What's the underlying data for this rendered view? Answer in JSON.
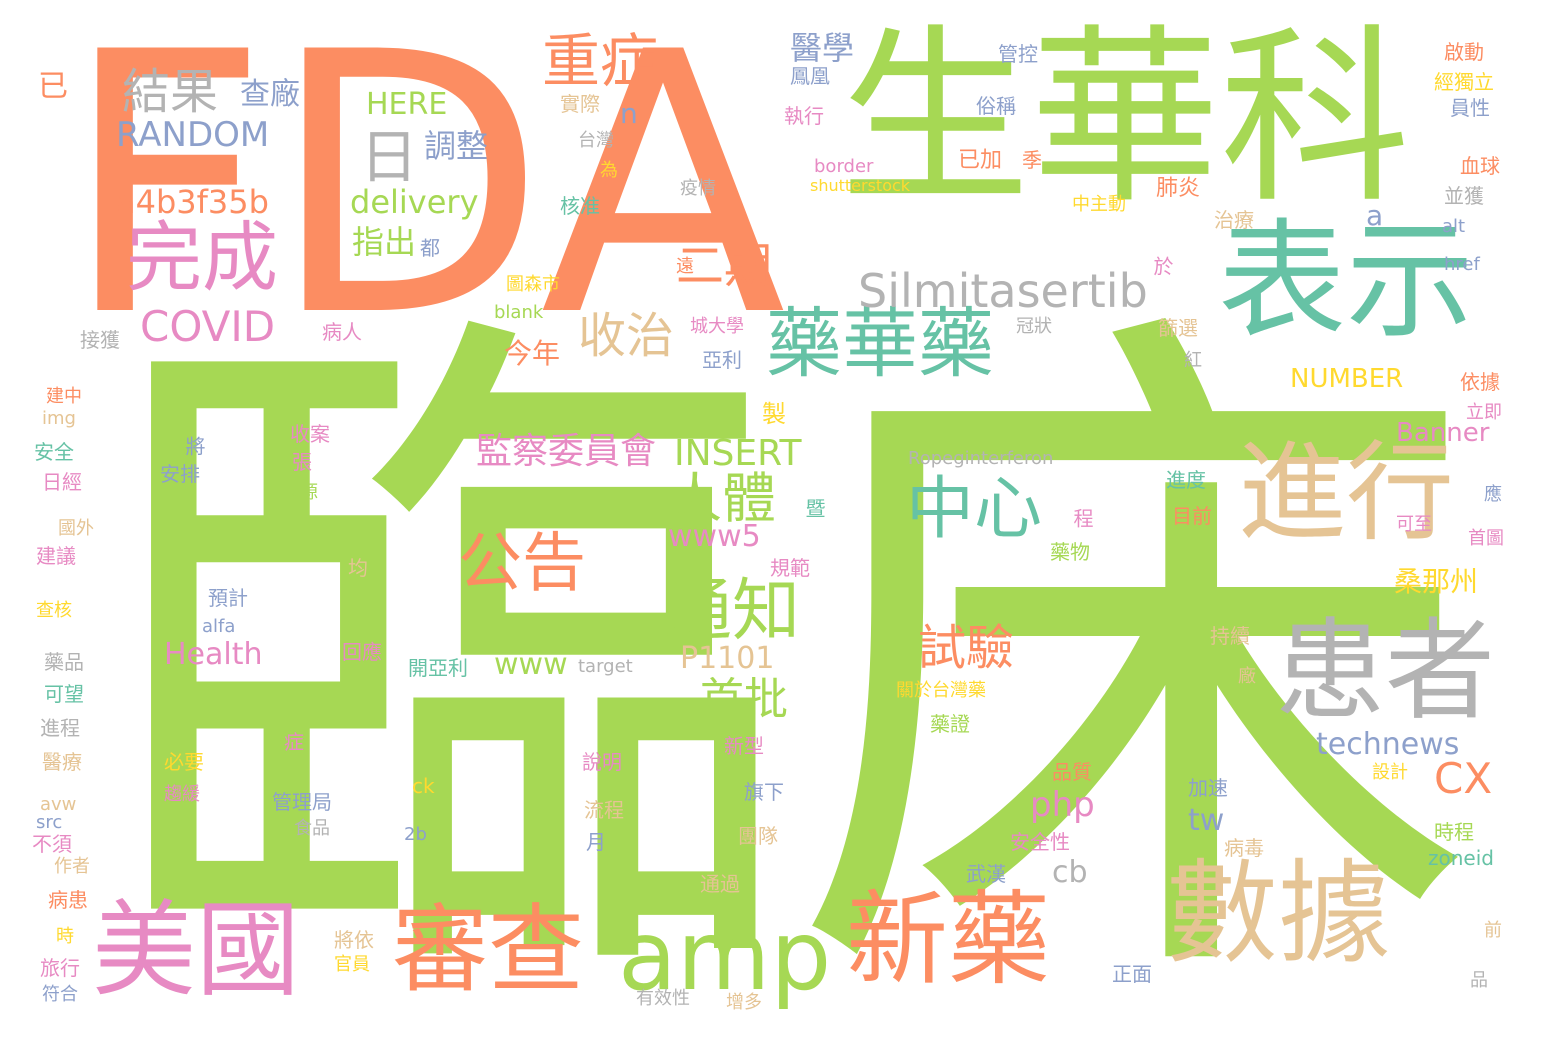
{
  "palette": {
    "green": "#a6d854",
    "orange": "#fc8d62",
    "teal": "#66c2a5",
    "tan": "#e5c494",
    "gray": "#b3b3b3",
    "pink": "#e78ac3",
    "blue": "#8da0cb",
    "yellow": "#ffd92f"
  },
  "words": [
    {
      "text": "臨床",
      "color": "green"
    },
    {
      "text": "FDA",
      "color": "orange"
    },
    {
      "text": "生華科",
      "color": "green"
    },
    {
      "text": "表示",
      "color": "teal"
    },
    {
      "text": "進行",
      "color": "tan"
    },
    {
      "text": "患者",
      "color": "gray"
    },
    {
      "text": "數據",
      "color": "tan"
    },
    {
      "text": "美國",
      "color": "pink"
    },
    {
      "text": "審查",
      "color": "orange"
    },
    {
      "text": "amp",
      "color": "green"
    },
    {
      "text": "新藥",
      "color": "orange"
    },
    {
      "text": "完成",
      "color": "pink"
    },
    {
      "text": "結果",
      "color": "gray"
    },
    {
      "text": "日",
      "color": "gray"
    },
    {
      "text": "重症",
      "color": "orange"
    },
    {
      "text": "醫學",
      "color": "blue"
    },
    {
      "text": "藥華藥",
      "color": "teal"
    },
    {
      "text": "Silmitasertib",
      "color": "gray"
    },
    {
      "text": "中心",
      "color": "teal"
    },
    {
      "text": "通知",
      "color": "green"
    },
    {
      "text": "公告",
      "color": "orange"
    },
    {
      "text": "人體",
      "color": "green"
    },
    {
      "text": "收治",
      "color": "tan"
    },
    {
      "text": "二期",
      "color": "orange"
    },
    {
      "text": "COVID",
      "color": "pink"
    },
    {
      "text": "RANDOM",
      "color": "blue"
    },
    {
      "text": "a4b3f35b",
      "color": "orange"
    },
    {
      "text": "delivery",
      "color": "green"
    },
    {
      "text": "指出",
      "color": "green"
    },
    {
      "text": "調整",
      "color": "blue"
    },
    {
      "text": "查廠",
      "color": "blue"
    },
    {
      "text": "HERE",
      "color": "green"
    },
    {
      "text": "監察委員會",
      "color": "pink"
    },
    {
      "text": "INSERT",
      "color": "green"
    },
    {
      "text": "試驗",
      "color": "orange"
    },
    {
      "text": "首批",
      "color": "green"
    },
    {
      "text": "www5",
      "color": "pink"
    },
    {
      "text": "www",
      "color": "green"
    },
    {
      "text": "P1101",
      "color": "tan"
    },
    {
      "text": "technews",
      "color": "blue"
    },
    {
      "text": "php",
      "color": "pink"
    },
    {
      "text": "CX",
      "color": "orange"
    },
    {
      "text": "tw",
      "color": "blue"
    },
    {
      "text": "cb",
      "color": "gray"
    },
    {
      "text": "Health",
      "color": "pink"
    },
    {
      "text": "Banner",
      "color": "pink"
    },
    {
      "text": "NUMBER",
      "color": "yellow"
    },
    {
      "text": "桑那州",
      "color": "yellow"
    },
    {
      "text": "今年",
      "color": "orange"
    },
    {
      "text": "n",
      "color": "blue"
    },
    {
      "text": "a",
      "color": "blue"
    },
    {
      "text": "Ropeginterferon",
      "color": "gray"
    },
    {
      "text": "已",
      "color": "orange"
    },
    {
      "text": "管控",
      "color": "blue"
    },
    {
      "text": "俗稱",
      "color": "blue"
    },
    {
      "text": "鳳凰",
      "color": "blue"
    },
    {
      "text": "實際",
      "color": "tan"
    },
    {
      "text": "執行",
      "color": "pink"
    },
    {
      "text": "台灣",
      "color": "gray"
    },
    {
      "text": "為",
      "color": "yellow"
    },
    {
      "text": "疫情",
      "color": "gray"
    },
    {
      "text": "border",
      "color": "pink"
    },
    {
      "text": "shutterstock",
      "color": "yellow"
    },
    {
      "text": "已加",
      "color": "orange"
    },
    {
      "text": "季",
      "color": "orange"
    },
    {
      "text": "啟動",
      "color": "orange"
    },
    {
      "text": "經獨立",
      "color": "yellow"
    },
    {
      "text": "員性",
      "color": "blue"
    },
    {
      "text": "血球",
      "color": "orange"
    },
    {
      "text": "並獲",
      "color": "gray"
    },
    {
      "text": "肺炎",
      "color": "orange"
    },
    {
      "text": "中主動",
      "color": "yellow"
    },
    {
      "text": "治療",
      "color": "tan"
    },
    {
      "text": "alt",
      "color": "blue"
    },
    {
      "text": "href",
      "color": "blue"
    },
    {
      "text": "於",
      "color": "pink"
    },
    {
      "text": "核准",
      "color": "teal"
    },
    {
      "text": "都",
      "color": "blue"
    },
    {
      "text": "圖森市",
      "color": "yellow"
    },
    {
      "text": "遠",
      "color": "orange"
    },
    {
      "text": "blank",
      "color": "green"
    },
    {
      "text": "城大學",
      "color": "pink"
    },
    {
      "text": "冠狀",
      "color": "gray"
    },
    {
      "text": "篩選",
      "color": "tan"
    },
    {
      "text": "紅",
      "color": "gray"
    },
    {
      "text": "亞利",
      "color": "blue"
    },
    {
      "text": "依據",
      "color": "orange"
    },
    {
      "text": "立即",
      "color": "pink"
    },
    {
      "text": "接獲",
      "color": "gray"
    },
    {
      "text": "病人",
      "color": "pink"
    },
    {
      "text": "建中",
      "color": "orange"
    },
    {
      "text": "img",
      "color": "tan"
    },
    {
      "text": "安全",
      "color": "teal"
    },
    {
      "text": "日經",
      "color": "pink"
    },
    {
      "text": "國外",
      "color": "tan"
    },
    {
      "text": "建議",
      "color": "pink"
    },
    {
      "text": "查核",
      "color": "yellow"
    },
    {
      "text": "藥品",
      "color": "gray"
    },
    {
      "text": "可望",
      "color": "teal"
    },
    {
      "text": "進程",
      "color": "gray"
    },
    {
      "text": "醫療",
      "color": "tan"
    },
    {
      "text": "avw",
      "color": "tan"
    },
    {
      "text": "src",
      "color": "blue"
    },
    {
      "text": "不須",
      "color": "pink"
    },
    {
      "text": "作者",
      "color": "tan"
    },
    {
      "text": "病患",
      "color": "orange"
    },
    {
      "text": "時",
      "color": "yellow"
    },
    {
      "text": "旅行",
      "color": "pink"
    },
    {
      "text": "符合",
      "color": "blue"
    },
    {
      "text": "將",
      "color": "blue"
    },
    {
      "text": "安排",
      "color": "blue"
    },
    {
      "text": "收案",
      "color": "pink"
    },
    {
      "text": "張",
      "color": "pink"
    },
    {
      "text": "來源",
      "color": "green"
    },
    {
      "text": "均",
      "color": "tan"
    },
    {
      "text": "預計",
      "color": "blue"
    },
    {
      "text": "alfa",
      "color": "blue"
    },
    {
      "text": "回應",
      "color": "pink"
    },
    {
      "text": "開亞利",
      "color": "teal"
    },
    {
      "text": "target",
      "color": "gray"
    },
    {
      "text": "規範",
      "color": "pink"
    },
    {
      "text": "製",
      "color": "yellow"
    },
    {
      "text": "暨",
      "color": "teal"
    },
    {
      "text": "必要",
      "color": "yellow"
    },
    {
      "text": "趨緩",
      "color": "pink"
    },
    {
      "text": "症",
      "color": "pink"
    },
    {
      "text": "管理局",
      "color": "blue"
    },
    {
      "text": "食品",
      "color": "gray"
    },
    {
      "text": "將依",
      "color": "tan"
    },
    {
      "text": "官員",
      "color": "yellow"
    },
    {
      "text": "有效性",
      "color": "gray"
    },
    {
      "text": "增多",
      "color": "tan"
    },
    {
      "text": "說明",
      "color": "pink"
    },
    {
      "text": "流程",
      "color": "tan"
    },
    {
      "text": "月",
      "color": "blue"
    },
    {
      "text": "ck",
      "color": "yellow"
    },
    {
      "text": "2b",
      "color": "blue"
    },
    {
      "text": "新型",
      "color": "pink"
    },
    {
      "text": "旗下",
      "color": "blue"
    },
    {
      "text": "團隊",
      "color": "tan"
    },
    {
      "text": "通過",
      "color": "tan"
    },
    {
      "text": "關於台灣藥",
      "color": "yellow"
    },
    {
      "text": "藥證",
      "color": "green"
    },
    {
      "text": "品質",
      "color": "orange"
    },
    {
      "text": "安全性",
      "color": "pink"
    },
    {
      "text": "武漢",
      "color": "blue"
    },
    {
      "text": "正面",
      "color": "blue"
    },
    {
      "text": "進度",
      "color": "teal"
    },
    {
      "text": "目前",
      "color": "orange"
    },
    {
      "text": "程",
      "color": "pink"
    },
    {
      "text": "藥物",
      "color": "green"
    },
    {
      "text": "持續",
      "color": "tan"
    },
    {
      "text": "廠",
      "color": "tan"
    },
    {
      "text": "加速",
      "color": "blue"
    },
    {
      "text": "病毒",
      "color": "tan"
    },
    {
      "text": "設計",
      "color": "yellow"
    },
    {
      "text": "時程",
      "color": "green"
    },
    {
      "text": "zoneid",
      "color": "teal"
    },
    {
      "text": "前",
      "color": "tan"
    },
    {
      "text": "品",
      "color": "gray"
    },
    {
      "text": "應",
      "color": "blue"
    },
    {
      "text": "可至",
      "color": "pink"
    },
    {
      "text": "首圖",
      "color": "pink"
    }
  ]
}
